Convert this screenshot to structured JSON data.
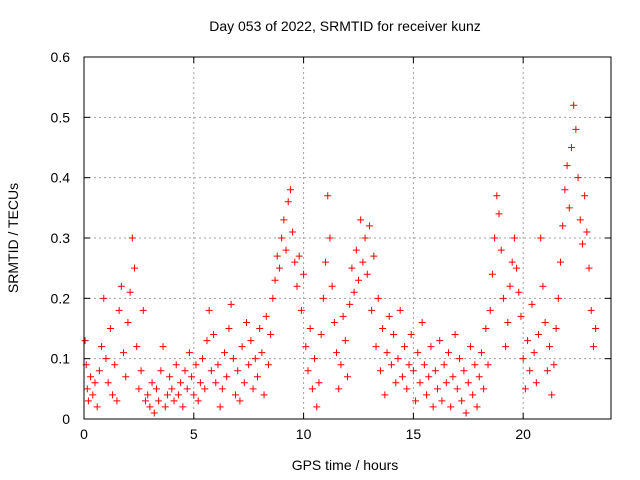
{
  "chart_data": {
    "type": "scatter",
    "title": "Day 053 of 2022, SRMTID for receiver kunz",
    "xlabel": "GPS time / hours",
    "ylabel": "SRMTID / TECUs",
    "xlim": [
      0,
      24
    ],
    "ylim": [
      0,
      0.6
    ],
    "xticks": [
      0,
      5,
      10,
      15,
      20
    ],
    "xtick_labels": [
      "0",
      "5",
      "10",
      "15",
      "20"
    ],
    "yticks": [
      0,
      0.1,
      0.2,
      0.3,
      0.4,
      0.5,
      0.6
    ],
    "ytick_labels": [
      "0",
      "0.1",
      "0.2",
      "0.3",
      "0.4",
      "0.5",
      "0.6"
    ],
    "grid": true,
    "marker": "plus",
    "series": [
      {
        "name": "SRMTID",
        "color": "#ff0000",
        "points": [
          [
            0.05,
            0.13
          ],
          [
            0.1,
            0.09
          ],
          [
            0.15,
            0.05
          ],
          [
            0.2,
            0.03
          ],
          [
            0.3,
            0.07
          ],
          [
            0.4,
            0.04
          ],
          [
            0.5,
            0.06
          ],
          [
            0.6,
            0.02
          ],
          [
            0.7,
            0.08
          ],
          [
            0.8,
            0.12
          ],
          [
            0.9,
            0.2
          ],
          [
            1.0,
            0.1
          ],
          [
            1.1,
            0.06
          ],
          [
            1.2,
            0.15
          ],
          [
            1.3,
            0.04
          ],
          [
            1.4,
            0.09
          ],
          [
            1.5,
            0.03
          ],
          [
            1.6,
            0.18
          ],
          [
            1.7,
            0.22
          ],
          [
            1.8,
            0.11
          ],
          [
            1.9,
            0.07
          ],
          [
            2.0,
            0.16
          ],
          [
            2.1,
            0.21
          ],
          [
            2.2,
            0.3
          ],
          [
            2.3,
            0.25
          ],
          [
            2.4,
            0.12
          ],
          [
            2.5,
            0.05
          ],
          [
            2.6,
            0.08
          ],
          [
            2.7,
            0.18
          ],
          [
            2.8,
            0.03
          ],
          [
            2.9,
            0.04
          ],
          [
            3.0,
            0.02
          ],
          [
            3.1,
            0.06
          ],
          [
            3.2,
            0.01
          ],
          [
            3.3,
            0.05
          ],
          [
            3.4,
            0.03
          ],
          [
            3.5,
            0.08
          ],
          [
            3.6,
            0.12
          ],
          [
            3.7,
            0.02
          ],
          [
            3.8,
            0.04
          ],
          [
            3.9,
            0.07
          ],
          [
            4.0,
            0.05
          ],
          [
            4.1,
            0.03
          ],
          [
            4.2,
            0.09
          ],
          [
            4.3,
            0.04
          ],
          [
            4.4,
            0.06
          ],
          [
            4.5,
            0.02
          ],
          [
            4.6,
            0.08
          ],
          [
            4.7,
            0.05
          ],
          [
            4.8,
            0.11
          ],
          [
            4.9,
            0.07
          ],
          [
            5.0,
            0.04
          ],
          [
            5.1,
            0.09
          ],
          [
            5.2,
            0.03
          ],
          [
            5.3,
            0.06
          ],
          [
            5.4,
            0.1
          ],
          [
            5.5,
            0.05
          ],
          [
            5.6,
            0.13
          ],
          [
            5.7,
            0.18
          ],
          [
            5.8,
            0.08
          ],
          [
            5.9,
            0.14
          ],
          [
            6.0,
            0.06
          ],
          [
            6.1,
            0.09
          ],
          [
            6.2,
            0.02
          ],
          [
            6.3,
            0.05
          ],
          [
            6.4,
            0.11
          ],
          [
            6.5,
            0.07
          ],
          [
            6.6,
            0.15
          ],
          [
            6.7,
            0.19
          ],
          [
            6.8,
            0.1
          ],
          [
            6.9,
            0.04
          ],
          [
            7.0,
            0.08
          ],
          [
            7.1,
            0.03
          ],
          [
            7.2,
            0.12
          ],
          [
            7.3,
            0.06
          ],
          [
            7.4,
            0.16
          ],
          [
            7.5,
            0.09
          ],
          [
            7.6,
            0.13
          ],
          [
            7.7,
            0.05
          ],
          [
            7.8,
            0.1
          ],
          [
            7.9,
            0.07
          ],
          [
            8.0,
            0.15
          ],
          [
            8.1,
            0.11
          ],
          [
            8.2,
            0.04
          ],
          [
            8.3,
            0.17
          ],
          [
            8.4,
            0.09
          ],
          [
            8.5,
            0.14
          ],
          [
            8.6,
            0.2
          ],
          [
            8.7,
            0.23
          ],
          [
            8.8,
            0.27
          ],
          [
            8.9,
            0.25
          ],
          [
            9.0,
            0.3
          ],
          [
            9.1,
            0.33
          ],
          [
            9.2,
            0.28
          ],
          [
            9.3,
            0.36
          ],
          [
            9.4,
            0.38
          ],
          [
            9.5,
            0.31
          ],
          [
            9.6,
            0.26
          ],
          [
            9.7,
            0.22
          ],
          [
            9.8,
            0.27
          ],
          [
            9.9,
            0.18
          ],
          [
            10.0,
            0.24
          ],
          [
            10.1,
            0.12
          ],
          [
            10.2,
            0.08
          ],
          [
            10.3,
            0.15
          ],
          [
            10.4,
            0.05
          ],
          [
            10.5,
            0.1
          ],
          [
            10.6,
            0.02
          ],
          [
            10.7,
            0.06
          ],
          [
            10.8,
            0.14
          ],
          [
            10.9,
            0.2
          ],
          [
            11.0,
            0.26
          ],
          [
            11.1,
            0.37
          ],
          [
            11.2,
            0.3
          ],
          [
            11.3,
            0.22
          ],
          [
            11.4,
            0.16
          ],
          [
            11.5,
            0.11
          ],
          [
            11.6,
            0.05
          ],
          [
            11.7,
            0.09
          ],
          [
            11.8,
            0.17
          ],
          [
            11.9,
            0.13
          ],
          [
            12.0,
            0.07
          ],
          [
            12.1,
            0.19
          ],
          [
            12.2,
            0.25
          ],
          [
            12.3,
            0.21
          ],
          [
            12.4,
            0.28
          ],
          [
            12.5,
            0.23
          ],
          [
            12.6,
            0.33
          ],
          [
            12.7,
            0.26
          ],
          [
            12.8,
            0.3
          ],
          [
            12.9,
            0.24
          ],
          [
            13.0,
            0.32
          ],
          [
            13.1,
            0.18
          ],
          [
            13.2,
            0.27
          ],
          [
            13.3,
            0.12
          ],
          [
            13.4,
            0.2
          ],
          [
            13.5,
            0.08
          ],
          [
            13.6,
            0.15
          ],
          [
            13.7,
            0.04
          ],
          [
            13.8,
            0.11
          ],
          [
            13.9,
            0.17
          ],
          [
            14.0,
            0.09
          ],
          [
            14.1,
            0.14
          ],
          [
            14.2,
            0.06
          ],
          [
            14.3,
            0.1
          ],
          [
            14.4,
            0.18
          ],
          [
            14.5,
            0.07
          ],
          [
            14.6,
            0.12
          ],
          [
            14.7,
            0.05
          ],
          [
            14.8,
            0.09
          ],
          [
            14.9,
            0.14
          ],
          [
            15.0,
            0.08
          ],
          [
            15.1,
            0.03
          ],
          [
            15.2,
            0.11
          ],
          [
            15.3,
            0.06
          ],
          [
            15.4,
            0.16
          ],
          [
            15.5,
            0.09
          ],
          [
            15.6,
            0.04
          ],
          [
            15.7,
            0.07
          ],
          [
            15.8,
            0.12
          ],
          [
            15.9,
            0.02
          ],
          [
            16.0,
            0.08
          ],
          [
            16.1,
            0.05
          ],
          [
            16.2,
            0.13
          ],
          [
            16.3,
            0.03
          ],
          [
            16.4,
            0.09
          ],
          [
            16.5,
            0.06
          ],
          [
            16.6,
            0.11
          ],
          [
            16.7,
            0.02
          ],
          [
            16.8,
            0.07
          ],
          [
            16.9,
            0.14
          ],
          [
            17.0,
            0.05
          ],
          [
            17.1,
            0.1
          ],
          [
            17.2,
            0.03
          ],
          [
            17.3,
            0.08
          ],
          [
            17.4,
            0.01
          ],
          [
            17.5,
            0.06
          ],
          [
            17.6,
            0.12
          ],
          [
            17.7,
            0.04
          ],
          [
            17.8,
            0.09
          ],
          [
            17.9,
            0.02
          ],
          [
            18.0,
            0.07
          ],
          [
            18.1,
            0.11
          ],
          [
            18.2,
            0.05
          ],
          [
            18.3,
            0.15
          ],
          [
            18.4,
            0.09
          ],
          [
            18.5,
            0.18
          ],
          [
            18.6,
            0.24
          ],
          [
            18.7,
            0.3
          ],
          [
            18.8,
            0.37
          ],
          [
            18.9,
            0.34
          ],
          [
            19.0,
            0.28
          ],
          [
            19.1,
            0.2
          ],
          [
            19.2,
            0.12
          ],
          [
            19.3,
            0.16
          ],
          [
            19.4,
            0.22
          ],
          [
            19.5,
            0.26
          ],
          [
            19.6,
            0.3
          ],
          [
            19.7,
            0.25
          ],
          [
            19.8,
            0.21
          ],
          [
            19.9,
            0.17
          ],
          [
            20.0,
            0.1
          ],
          [
            20.1,
            0.05
          ],
          [
            20.2,
            0.13
          ],
          [
            20.3,
            0.08
          ],
          [
            20.4,
            0.19
          ],
          [
            20.5,
            0.11
          ],
          [
            20.6,
            0.06
          ],
          [
            20.7,
            0.14
          ],
          [
            20.8,
            0.3
          ],
          [
            20.9,
            0.22
          ],
          [
            21.0,
            0.16
          ],
          [
            21.1,
            0.08
          ],
          [
            21.2,
            0.12
          ],
          [
            21.3,
            0.04
          ],
          [
            21.4,
            0.09
          ],
          [
            21.5,
            0.15
          ],
          [
            21.6,
            0.2
          ],
          [
            21.7,
            0.26
          ],
          [
            21.8,
            0.32
          ],
          [
            21.9,
            0.38
          ],
          [
            22.0,
            0.42
          ],
          [
            22.1,
            0.35
          ],
          [
            22.2,
            0.45
          ],
          [
            22.3,
            0.52
          ],
          [
            22.4,
            0.48
          ],
          [
            22.5,
            0.4
          ],
          [
            22.6,
            0.33
          ],
          [
            22.7,
            0.29
          ],
          [
            22.8,
            0.37
          ],
          [
            22.9,
            0.31
          ],
          [
            23.0,
            0.25
          ],
          [
            23.1,
            0.18
          ],
          [
            23.2,
            0.12
          ],
          [
            23.3,
            0.15
          ]
        ]
      }
    ]
  }
}
